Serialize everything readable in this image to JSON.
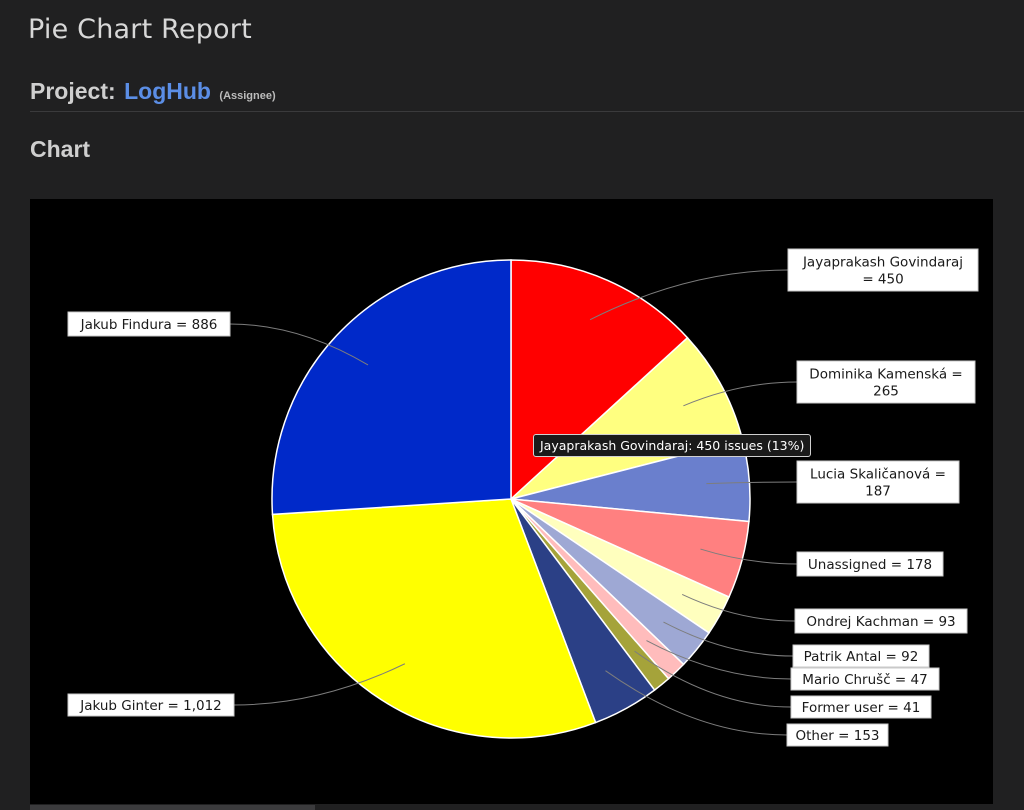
{
  "page": {
    "title": "Pie Chart Report",
    "project_label": "Project:",
    "project_name": "LogHub",
    "statistic_type": "(Assignee)",
    "section_title": "Chart"
  },
  "tooltip": "Jayaprakash Govindaraj: 450 issues (13%)",
  "chart_data": {
    "type": "pie",
    "title": "",
    "start_angle_deg": 0,
    "direction": "clockwise",
    "slices": [
      {
        "name": "Jayaprakash Govindaraj",
        "value": 450,
        "color": "#ff0000",
        "label": [
          "Jayaprakash Govindaraj",
          "= 450"
        ]
      },
      {
        "name": "Dominika Kamenská",
        "value": 265,
        "color": "#ffff80",
        "label": [
          "Dominika Kamenská =",
          "265"
        ]
      },
      {
        "name": "Lucia Skaličanová",
        "value": 187,
        "color": "#6a7fcd",
        "label": [
          "Lucia Skaličanová =",
          "187"
        ]
      },
      {
        "name": "Unassigned",
        "value": 178,
        "color": "#ff8080",
        "label": [
          "Unassigned = 178"
        ]
      },
      {
        "name": "Ondrej Kachman",
        "value": 93,
        "color": "#ffffbe",
        "label": [
          "Ondrej Kachman = 93"
        ]
      },
      {
        "name": "Patrik Antal",
        "value": 92,
        "color": "#9ea8d4",
        "label": [
          "Patrik Antal = 92"
        ]
      },
      {
        "name": "Mario Chrušč",
        "value": 47,
        "color": "#ffbcbc",
        "label": [
          "Mario Chrušč = 47"
        ]
      },
      {
        "name": "Former user",
        "value": 41,
        "color": "#a5a33a",
        "label": [
          "Former user = 41"
        ]
      },
      {
        "name": "Other",
        "value": 153,
        "color": "#2b4086",
        "label": [
          "Other = 153"
        ]
      },
      {
        "name": "Jakub Ginter",
        "value": 1012,
        "color": "#ffff00",
        "label": [
          "Jakub Ginter = 1,012"
        ]
      },
      {
        "name": "Jakub Findura",
        "value": 886,
        "color": "#0029c9",
        "label": [
          "Jakub Findura = 886"
        ]
      }
    ]
  }
}
